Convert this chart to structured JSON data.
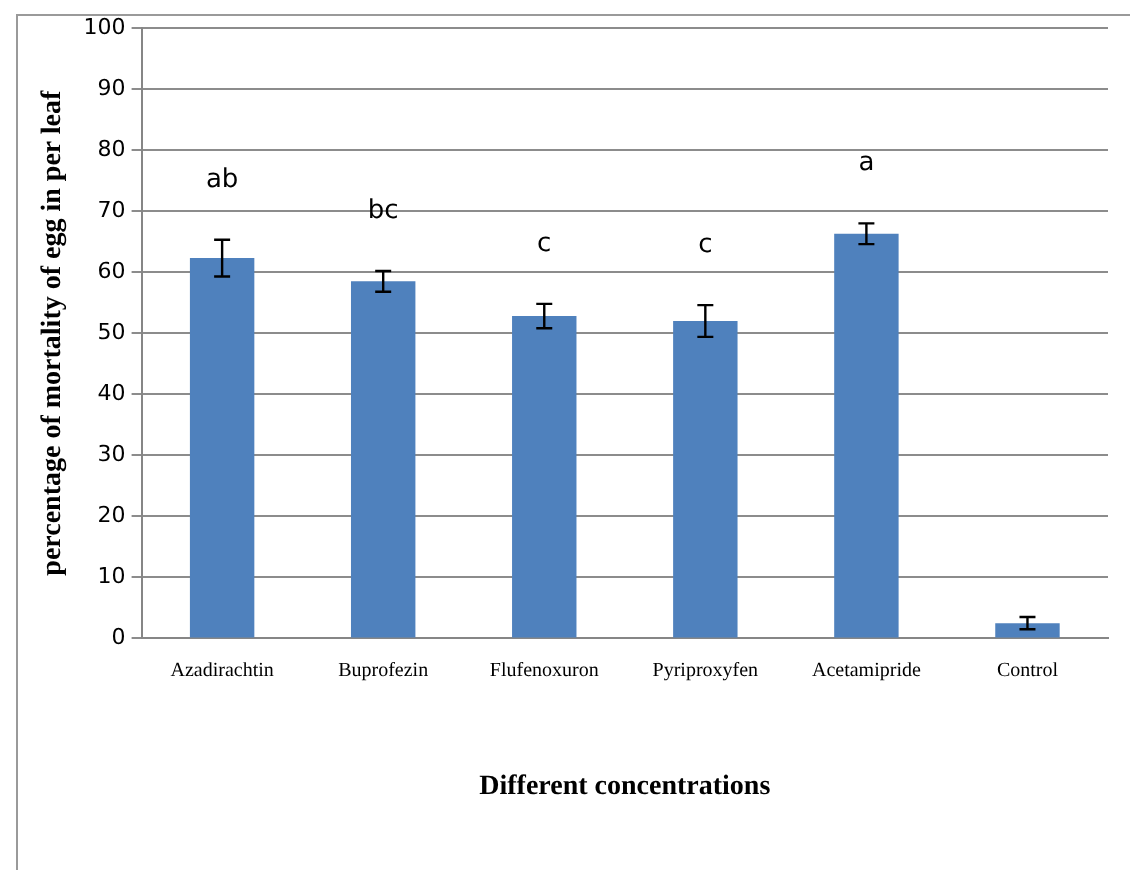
{
  "chart_data": {
    "type": "bar",
    "xlabel": "Different concentrations",
    "ylabel": "percentage of mortality of egg in per leaf",
    "categories": [
      "Azadirachtin",
      "Buprofezin",
      "Flufenoxuron",
      "Pyriproxyfen",
      "Acetamipride",
      "Control"
    ],
    "values": [
      62.3,
      58.5,
      52.8,
      52.0,
      66.3,
      2.5
    ],
    "errors": [
      3,
      1.7,
      2,
      2.6,
      1.7,
      1
    ],
    "color": "#4f81bd",
    "ylim": [
      0,
      100
    ],
    "yticks": [
      0,
      10,
      20,
      30,
      40,
      50,
      60,
      70,
      80,
      90,
      100
    ],
    "grid": "y",
    "legend": false,
    "annotations": [
      "ab",
      "bc",
      "c",
      "c",
      "a"
    ]
  }
}
